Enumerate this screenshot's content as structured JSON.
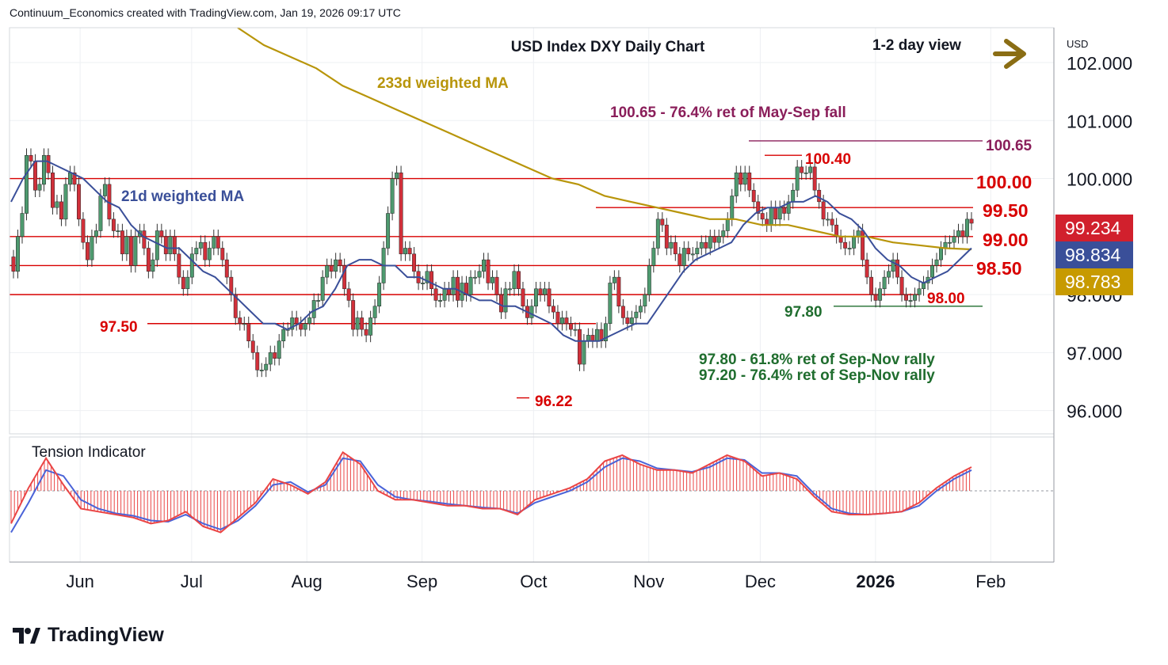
{
  "header": {
    "caption": "Continuum_Economics created with TradingView.com, Jan 19, 2026 09:17 UTC"
  },
  "brand": {
    "name": "TradingView",
    "icon": "tradingview-logo-icon"
  },
  "colors": {
    "up": "#4e9a6f",
    "down": "#d1303a",
    "level_line": "#d80000",
    "ma21": "#3a4f99",
    "ma233": "#b8950a",
    "retracement_line": "#8a1e5a",
    "support_line": "#1f6d2e",
    "tension_red": "#ea4545",
    "tension_blue": "#4a63d8",
    "arrow": "#8a6d14"
  },
  "chart_data": [
    {
      "type": "candlestick",
      "title": "USD Index DXY Daily Chart",
      "view_label": "1-2 day view",
      "view_icon": "arrow-right-icon",
      "currency_label": "USD",
      "y_ticks": [
        "102.000",
        "101.000",
        "100.000",
        "98.000",
        "97.000",
        "96.000"
      ],
      "x_ticks": [
        "Jun",
        "Jul",
        "Aug",
        "Sep",
        "Oct",
        "Nov",
        "Dec",
        "2026",
        "Feb"
      ],
      "ylim": [
        95.6,
        102.6
      ],
      "x_range": [
        "2025-05-13",
        "2026-02-18"
      ],
      "grid": true,
      "closes": [
        98.4,
        99.0,
        99.4,
        100.4,
        100.3,
        99.8,
        99.9,
        100.4,
        100.1,
        99.5,
        99.6,
        99.3,
        99.9,
        100.1,
        99.9,
        99.3,
        98.9,
        98.6,
        99.0,
        99.1,
        99.7,
        99.9,
        99.3,
        99.1,
        99.1,
        98.7,
        99.0,
        98.5,
        99.0,
        99.1,
        98.8,
        98.4,
        98.6,
        99.1,
        99.0,
        98.7,
        99.0,
        98.7,
        98.3,
        98.1,
        98.3,
        98.7,
        98.8,
        98.9,
        98.6,
        98.8,
        99.0,
        98.8,
        98.6,
        98.3,
        98.0,
        97.6,
        97.5,
        97.5,
        97.2,
        97.0,
        96.7,
        96.7,
        96.8,
        97.0,
        96.9,
        97.2,
        97.4,
        97.4,
        97.6,
        97.5,
        97.4,
        97.5,
        97.6,
        97.9,
        97.9,
        98.3,
        98.5,
        98.4,
        98.6,
        98.5,
        98.1,
        97.9,
        97.4,
        97.6,
        97.4,
        97.3,
        97.6,
        97.8,
        98.2,
        98.8,
        99.4,
        100.0,
        100.1,
        98.7,
        98.8,
        98.7,
        98.4,
        98.2,
        98.2,
        98.4,
        98.1,
        97.9,
        97.9,
        98.1,
        98.0,
        98.3,
        97.9,
        98.2,
        98.0,
        98.3,
        98.3,
        98.4,
        98.6,
        98.2,
        98.3,
        98.0,
        97.7,
        98.1,
        98.1,
        98.4,
        98.1,
        97.8,
        97.6,
        97.8,
        98.1,
        98.0,
        98.1,
        97.8,
        97.7,
        97.5,
        97.6,
        97.5,
        97.4,
        97.4,
        96.8,
        97.2,
        97.3,
        97.2,
        97.4,
        97.2,
        97.5,
        98.2,
        98.3,
        97.8,
        97.6,
        97.5,
        97.6,
        97.7,
        97.8,
        98.0,
        98.5,
        98.8,
        99.3,
        99.2,
        98.8,
        98.9,
        98.7,
        98.5,
        98.8,
        98.7,
        98.7,
        98.8,
        98.9,
        98.8,
        99.0,
        98.9,
        99.0,
        99.1,
        99.3,
        99.7,
        100.1,
        99.9,
        100.1,
        99.8,
        99.6,
        99.4,
        99.3,
        99.2,
        99.5,
        99.3,
        99.5,
        99.4,
        99.6,
        99.8,
        100.2,
        100.1,
        100.1,
        100.2,
        99.8,
        99.6,
        99.3,
        99.3,
        99.2,
        99.0,
        98.9,
        98.8,
        98.8,
        99.0,
        99.1,
        98.6,
        98.3,
        98.0,
        97.9,
        98.1,
        98.3,
        98.4,
        98.6,
        98.3,
        98.0,
        97.9,
        97.9,
        98.0,
        98.1,
        98.2,
        98.3,
        98.5,
        98.6,
        98.8,
        98.9,
        98.9,
        99.0,
        99.1,
        99.0,
        99.3,
        99.23
      ],
      "moving_averages": [
        {
          "name": "21d weighted MA",
          "values": [
            99.6,
            100.0,
            100.3,
            100.3,
            100.2,
            100.1,
            100.0,
            99.8,
            99.6,
            99.5,
            99.2,
            99.0,
            98.9,
            98.8,
            98.8,
            98.6,
            98.4,
            98.3,
            98.1,
            97.9,
            97.7,
            97.5,
            97.5,
            97.4,
            97.5,
            97.7,
            97.8,
            98.1,
            98.5,
            98.6,
            98.6,
            98.5,
            98.5,
            98.3,
            98.3,
            98.2,
            98.1,
            98.1,
            98.0,
            97.9,
            97.9,
            97.8,
            97.8,
            97.7,
            97.6,
            97.5,
            97.3,
            97.2,
            97.2,
            97.2,
            97.3,
            97.4,
            97.5,
            97.5,
            97.8,
            98.1,
            98.4,
            98.6,
            98.7,
            98.8,
            98.9,
            99.2,
            99.4,
            99.5,
            99.5,
            99.6,
            99.6,
            99.7,
            99.6,
            99.4,
            99.3,
            99.1,
            98.8,
            98.6,
            98.5,
            98.3,
            98.2,
            98.3,
            98.4,
            98.6,
            98.8
          ]
        },
        {
          "name": "233d weighted MA",
          "values": [
            102.6,
            102.3,
            102.1,
            101.9,
            101.6,
            101.4,
            101.2,
            101.0,
            100.8,
            100.6,
            100.4,
            100.2,
            100.0,
            99.9,
            99.7,
            99.6,
            99.5,
            99.4,
            99.3,
            99.3,
            99.2,
            99.2,
            99.1,
            99.0,
            99.0,
            98.9,
            98.85,
            98.8,
            98.78
          ]
        }
      ],
      "current_price": "99.234",
      "ma21_value": "98.834",
      "ma233_value": "98.783",
      "levels": [
        {
          "label": "100.00",
          "value": 100.0
        },
        {
          "label": "99.50",
          "value": 99.5
        },
        {
          "label": "99.00",
          "value": 99.0
        },
        {
          "label": "98.50",
          "value": 98.5
        },
        {
          "label": "98.00",
          "value": 98.0
        },
        {
          "label": "97.50",
          "value": 97.5
        },
        {
          "label": "100.40",
          "value": 100.4
        },
        {
          "label": "96.22",
          "value": 96.22
        }
      ],
      "retracement": {
        "label": "100.65",
        "value": 100.65
      },
      "support": {
        "label": "97.80",
        "value": 97.8
      },
      "annotations": [
        "233d weighted MA",
        "21d weighted MA",
        "100.65 - 76.4% ret of May-Sep fall",
        "97.80 - 61.8% ret of Sep-Nov rally",
        "97.20 - 76.4% ret of Sep-Nov rally"
      ]
    },
    {
      "type": "line",
      "title": "Tension Indicator",
      "series": [
        {
          "values": [
            -0.55,
            0.05,
            0.55,
            0.1,
            -0.3,
            -0.35,
            -0.4,
            -0.45,
            -0.55,
            -0.5,
            -0.35,
            -0.6,
            -0.7,
            -0.45,
            -0.2,
            0.2,
            0.1,
            -0.05,
            0.15,
            0.65,
            0.45,
            0.0,
            -0.15,
            -0.15,
            -0.2,
            -0.25,
            -0.25,
            -0.3,
            -0.3,
            -0.4,
            -0.15,
            -0.05,
            0.05,
            0.2,
            0.5,
            0.6,
            0.45,
            0.35,
            0.35,
            0.3,
            0.45,
            0.6,
            0.5,
            0.25,
            0.3,
            0.2,
            -0.1,
            -0.35,
            -0.4,
            -0.4,
            -0.38,
            -0.35,
            -0.2,
            0.05,
            0.25,
            0.4
          ]
        },
        {
          "values": [
            -0.7,
            -0.2,
            0.35,
            0.25,
            -0.15,
            -0.3,
            -0.38,
            -0.42,
            -0.5,
            -0.52,
            -0.4,
            -0.55,
            -0.65,
            -0.5,
            -0.25,
            0.1,
            0.15,
            -0.02,
            0.1,
            0.55,
            0.5,
            0.1,
            -0.1,
            -0.15,
            -0.18,
            -0.22,
            -0.25,
            -0.28,
            -0.3,
            -0.38,
            -0.2,
            -0.1,
            0.0,
            0.15,
            0.4,
            0.55,
            0.5,
            0.38,
            0.35,
            0.32,
            0.4,
            0.55,
            0.52,
            0.3,
            0.3,
            0.25,
            -0.05,
            -0.3,
            -0.38,
            -0.4,
            -0.38,
            -0.35,
            -0.25,
            0.0,
            0.2,
            0.35
          ]
        }
      ]
    }
  ]
}
